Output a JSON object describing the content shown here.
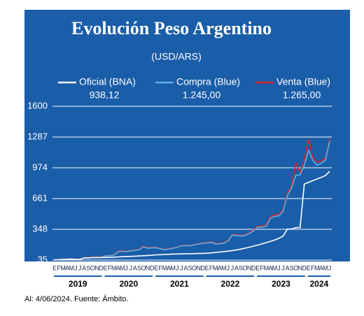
{
  "chart_data": {
    "type": "line",
    "title": "Evolución Peso Argentino",
    "subtitle": "(USD/ARS)",
    "footer": "Al: 4/06/2024. Fuente: Ámbito.",
    "categories": [
      "E",
      "F",
      "M",
      "A",
      "M",
      "J",
      "J",
      "A",
      "S",
      "O",
      "N",
      "D",
      "E",
      "F",
      "M",
      "A",
      "M",
      "J",
      "J",
      "A",
      "S",
      "O",
      "N",
      "D",
      "E",
      "F",
      "M",
      "A",
      "M",
      "J",
      "J",
      "A",
      "S",
      "O",
      "N",
      "D",
      "E",
      "F",
      "M",
      "A",
      "M",
      "J",
      "J",
      "A",
      "S",
      "O",
      "N",
      "D",
      "E",
      "F",
      "M",
      "A",
      "M",
      "J",
      "J",
      "A",
      "S",
      "O",
      "N",
      "D",
      "E",
      "F",
      "M",
      "A",
      "M",
      "J"
    ],
    "year_labels": [
      "2019",
      "2020",
      "2021",
      "2022",
      "2023",
      "2024"
    ],
    "ylim": [
      35,
      1600
    ],
    "yticks": [
      35,
      348,
      661,
      974,
      1287,
      1600
    ],
    "grid": true,
    "series": [
      {
        "name": "Venta (Blue)",
        "color": "#d9252b",
        "last_value": 1265,
        "last_value_label": "1.265,00",
        "values": [
          39,
          40,
          44,
          45,
          47,
          44,
          44,
          60,
          59,
          65,
          66,
          66,
          80,
          82,
          88,
          125,
          130,
          124,
          132,
          139,
          145,
          178,
          160,
          165,
          164,
          154,
          144,
          152,
          159,
          168,
          184,
          184,
          183,
          194,
          202,
          210,
          215,
          220,
          205,
          205,
          213,
          235,
          296,
          291,
          286,
          291,
          312,
          340,
          380,
          380,
          392,
          475,
          495,
          495,
          545,
          710,
          790,
          1020,
          925,
          1050,
          1265,
          1080,
          1030,
          1045,
          1070,
          1265
        ]
      },
      {
        "name": "Compra (Blue)",
        "color": "#5ab4e6",
        "last_value": 1245,
        "last_value_label": "1.245,00",
        "values": [
          38,
          39,
          43,
          44,
          46,
          43,
          43,
          58,
          57,
          62,
          63,
          63,
          78,
          80,
          85,
          120,
          125,
          120,
          128,
          135,
          140,
          170,
          155,
          160,
          160,
          150,
          140,
          148,
          155,
          165,
          180,
          180,
          180,
          190,
          198,
          205,
          210,
          215,
          200,
          200,
          208,
          230,
          290,
          285,
          280,
          285,
          305,
          330,
          370,
          370,
          380,
          460,
          480,
          485,
          530,
          690,
          770,
          900,
          900,
          1000,
          1150,
          1050,
          1000,
          1020,
          1050,
          1245
        ]
      },
      {
        "name": "Oficial (BNA)",
        "color": "#ffffff",
        "last_value": 938.12,
        "last_value_label": "938,12",
        "values": [
          37.5,
          38,
          42,
          43,
          45,
          43,
          42,
          58,
          57,
          60,
          60,
          60,
          61,
          63,
          65,
          67,
          69,
          71,
          73,
          75,
          77,
          79,
          82,
          84,
          88,
          90,
          92,
          94,
          96,
          97,
          98,
          99,
          100,
          101,
          102,
          103,
          105,
          108,
          112,
          117,
          121,
          126,
          132,
          139,
          147,
          156,
          166,
          177,
          187,
          200,
          212,
          225,
          240,
          256,
          280,
          350,
          350,
          365,
          366,
          808,
          826,
          843,
          860,
          876,
          895,
          938.12
        ]
      }
    ]
  }
}
